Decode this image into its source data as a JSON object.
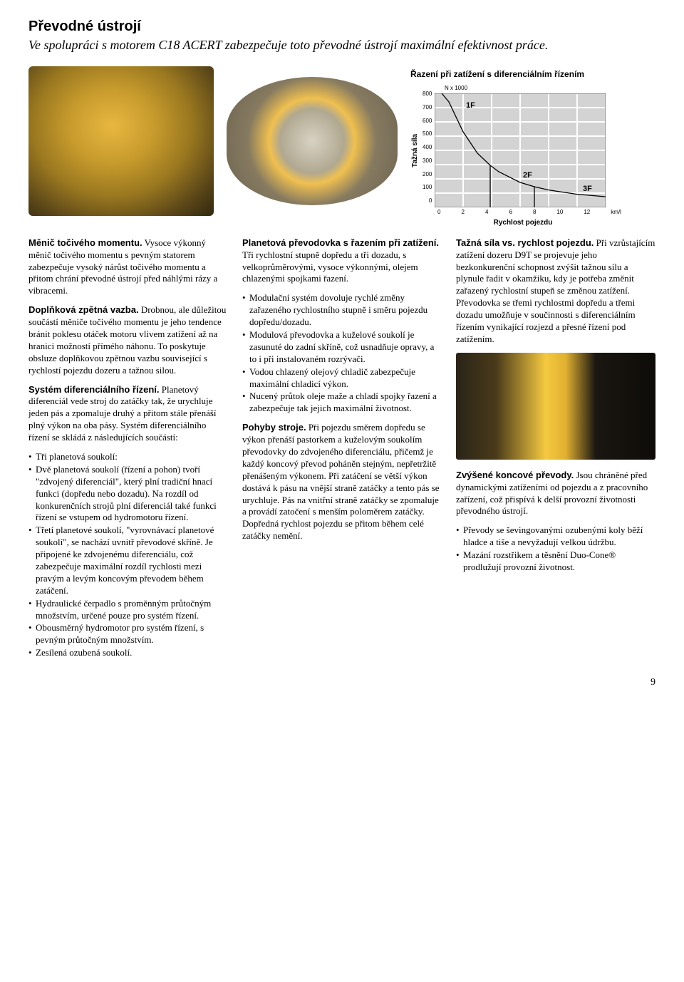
{
  "page": {
    "title": "Převodné ústrojí",
    "subtitle": "Ve spolupráci s motorem C18 ACERT zabezpečuje toto převodné ústrojí maximální efektivnost práce.",
    "number": "9"
  },
  "chart": {
    "type": "line",
    "title": "Řazení při zatížení s diferenciálním řízením",
    "y_label": "Tažná síla",
    "y_unit": "N x 1000",
    "x_label": "Rychlost pojezdu",
    "x_unit": "km/l",
    "y_ticks": [
      "800",
      "700",
      "600",
      "500",
      "400",
      "300",
      "200",
      "100",
      "0"
    ],
    "x_ticks": [
      "0",
      "2",
      "4",
      "6",
      "8",
      "10",
      "12"
    ],
    "ylim": [
      0,
      800
    ],
    "xlim": [
      0,
      12
    ],
    "series_labels": {
      "s1": "1F",
      "s2": "2F",
      "s3": "3F"
    },
    "series_data": {
      "s1": [
        [
          0.5,
          800
        ],
        [
          1.0,
          740
        ],
        [
          2.0,
          530
        ],
        [
          3.0,
          380
        ],
        [
          3.9,
          295
        ]
      ],
      "s2": [
        [
          3.9,
          295
        ],
        [
          4.5,
          250
        ],
        [
          6.0,
          175
        ],
        [
          7.0,
          145
        ]
      ],
      "s3": [
        [
          7.0,
          145
        ],
        [
          8.0,
          122
        ],
        [
          10.0,
          92
        ],
        [
          12.0,
          75
        ]
      ]
    },
    "colors": {
      "grid": "#b5b5b5",
      "grid_fill": "#d3d3d3",
      "line": "#000000",
      "background": "#ffffff",
      "text": "#000000"
    },
    "line_width": 1.3,
    "label_fontsize": 10,
    "tick_fontsize": 8
  },
  "col1": {
    "p1_lead": "Měnič točivého momentu.",
    "p1": " Vysoce výkonný měnič točivého momentu s pevným statorem zabezpečuje vysoký nárůst točivého momentu a přitom chrání převodné ústrojí před náhlými rázy a vibracemi.",
    "p2_lead": "Doplňková zpětná vazba.",
    "p2": " Drobnou, ale důležitou součástí měniče točivého momentu je jeho tendence bránit poklesu otáček motoru vlivem zatížení až na hranici možností přímého náhonu. To poskytuje obsluze doplňkovou zpětnou vazbu související s rychlostí pojezdu dozeru a tažnou silou.",
    "p3_lead": "Systém diferenciálního řízení.",
    "p3": " Planetový diferenciál vede stroj do zatáčky tak, že urychluje jeden pás a zpomaluje druhý a přitom stále přenáší plný výkon na oba pásy. Systém diferenciálního řízení se skládá z následujících součástí:",
    "bul1": "Tři planetová soukolí:",
    "bul2": "Dvě planetová soukolí (řízení a pohon) tvoří \"zdvojený diferenciál\", který plní tradiční hnací funkci (dopředu nebo dozadu). Na rozdíl od konkurenčních strojů plní diferenciál také funkci řízení se vstupem od hydromotoru řízení.",
    "bul3": "Třetí planetové soukolí, \"vyrovnávací planetové soukolí\", se nachází uvnitř převodové skříně. Je připojené ke zdvojenému diferenciálu, což zabezpečuje maximální rozdíl rychlosti mezi pravým a levým koncovým převodem během zatáčení.",
    "bul4": "Hydraulické čerpadlo s proměnným průtočným množstvím, určené pouze pro systém řízení.",
    "bul5": "Obousměrný hydromotor pro systém řízení, s pevným průtočným množstvím.",
    "bul6": "Zesílená ozubená soukolí."
  },
  "col2": {
    "p1_lead": "Planetová převodovka s řazením při zatížení.",
    "p1": " Tři rychlostní stupně dopředu a tři dozadu, s velkoprůměrovými, vysoce výkonnými, olejem chlazenými spojkami řazení.",
    "bul1": "Modulační systém dovoluje rychlé změny zařazeného rychlostního stupně i směru pojezdu dopředu/dozadu.",
    "bul2": "Modulová převodovka a kuželové soukolí je zasunuté do zadní skříně, což usnadňuje opravy, a to i při instalovaném rozrývači.",
    "bul3": "Vodou chlazený olejový chladič zabezpečuje maximální chladicí výkon.",
    "bul4": "Nucený průtok oleje maže a chladí spojky řazení a zabezpečuje tak jejich maximální životnost.",
    "p2_lead": "Pohyby stroje.",
    "p2": " Při pojezdu směrem dopředu se výkon přenáší pastorkem a kuželovým soukolím převodovky do zdvojeného diferenciálu, přičemž je každý koncový převod poháněn stejným, nepřetržitě přenášeným výkonem. Při zatáčení se větší výkon dostává k pásu na vnější straně zatáčky a tento pás se urychluje. Pás na vnitřní straně zatáčky se zpomaluje a provádí zatočení s menším poloměrem zatáčky. Dopředná rychlost pojezdu se přitom během celé zatáčky nemění."
  },
  "col3": {
    "p1_lead": "Tažná síla vs. rychlost pojezdu.",
    "p1": " Při vzrůstajícím zatížení dozeru D9T se projevuje jeho bezkonkurenční schopnost zvýšit tažnou sílu a plynule řadit v okamžiku, kdy je potřeba změnit zařazený rychlostní stupeň se změnou zatížení. Převodovka se třemi rychlostmi dopředu a třemi dozadu umožňuje v součinnosti s diferenciálním řízením vynikající rozjezd a přesné řízení pod zatížením.",
    "p2_lead": "Zvýšené koncové převody.",
    "p2": " Jsou chráněné před dynamickými zatíženími od pojezdu a z pracovního zařízení, což přispívá k delší provozní životnosti převodného ústrojí.",
    "bul1": "Převody se ševingovanými ozubenými koly běží hladce a tiše a nevyžadují velkou údržbu.",
    "bul2": "Mazání rozstřikem a těsnění Duo-Cone® prodlužují provozní životnost."
  }
}
